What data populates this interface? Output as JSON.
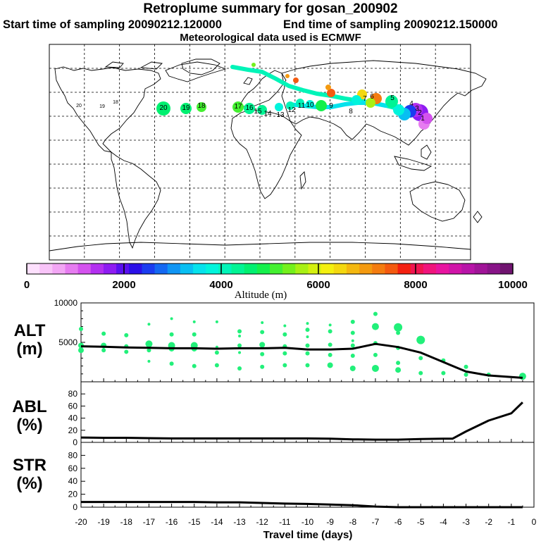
{
  "header": {
    "title": "Retroplume summary for gosan_200902",
    "start_label": "Start time of sampling 20090212.120000",
    "end_label": "End time of sampling 20090212.150000",
    "met_label": "Meteorological data used is ECMWF"
  },
  "colorbar": {
    "label": "Altitude (m)",
    "ticks": [
      "0",
      "2000",
      "4000",
      "6000",
      "8000",
      "10000"
    ],
    "colors": [
      "#fde0fd",
      "#f8c4f8",
      "#f2a6f4",
      "#e67cf0",
      "#d452ee",
      "#b32ff0",
      "#8e1cf2",
      "#5a10f0",
      "#2a10e8",
      "#1a3cf0",
      "#1468f2",
      "#0f95f4",
      "#08bff2",
      "#05e2ec",
      "#00f4dc",
      "#00f4b8",
      "#00f494",
      "#00f070",
      "#14f04c",
      "#44f030",
      "#74f01c",
      "#a8f014",
      "#d4f010",
      "#f4f010",
      "#f4d810",
      "#f4b810",
      "#f49a10",
      "#f47c10",
      "#f45a10",
      "#f42010",
      "#f01450",
      "#f0147c",
      "#e814a0",
      "#d014a8",
      "#b814a8",
      "#a01498",
      "#881488",
      "#701470"
    ]
  },
  "map": {
    "labels": [
      {
        "t": "20",
        "c": "#d4f010"
      },
      {
        "t": "19",
        "c": "#d4f010"
      },
      {
        "t": "18",
        "c": "#d4f010"
      },
      {
        "t": "20",
        "c": "#00f494"
      },
      {
        "t": "19",
        "c": "#00f494"
      },
      {
        "t": "18",
        "c": "#00f494"
      },
      {
        "t": "17",
        "c": "#44f030"
      },
      {
        "t": "16",
        "c": "#00f494"
      },
      {
        "t": "15",
        "c": "#00f494"
      },
      {
        "t": "14",
        "c": "#00f4b8"
      },
      {
        "t": "13",
        "c": "#00f4b8"
      },
      {
        "t": "12",
        "c": "#00f4b8"
      },
      {
        "t": "11",
        "c": "#00f4b8"
      },
      {
        "t": "10",
        "c": "#00f4b8"
      },
      {
        "t": "9",
        "c": "#a8f014"
      },
      {
        "t": "8",
        "c": "#d4f010"
      },
      {
        "t": "7",
        "c": "#44f030"
      },
      {
        "t": "6",
        "c": "#05e2ec"
      },
      {
        "t": "5",
        "c": "#08bff2"
      },
      {
        "t": "4",
        "c": "#1468f2"
      },
      {
        "t": "3",
        "c": "#8e1cf2"
      },
      {
        "t": "2",
        "c": "#b32ff0"
      },
      {
        "t": "1",
        "c": "#e67cf0"
      }
    ]
  },
  "chart_data": [
    {
      "type": "line",
      "panel": "ALT",
      "ylabel": "ALT\n(m)",
      "ylabel_top": "ALT",
      "ylabel_bottom": "(m)",
      "ylim": [
        0,
        10000
      ],
      "yticks": [
        "5000",
        "10000"
      ],
      "x": [
        -20,
        -19,
        -18,
        -17,
        -16,
        -15,
        -14,
        -13,
        -12,
        -11,
        -10,
        -9,
        -8,
        -7,
        -6,
        -5,
        -4,
        -3,
        -2,
        -1,
        -0.5
      ],
      "values": [
        4500,
        4450,
        4350,
        4300,
        4250,
        4250,
        4200,
        4250,
        4250,
        4300,
        4100,
        4100,
        4200,
        4800,
        4400,
        3700,
        2500,
        1300,
        800,
        600,
        500
      ],
      "scatter": [
        {
          "x": -20,
          "y": 6700,
          "s": 3
        },
        {
          "x": -20,
          "y": 4600,
          "s": 4
        },
        {
          "x": -20,
          "y": 4000,
          "s": 4
        },
        {
          "x": -19,
          "y": 6100,
          "s": 3
        },
        {
          "x": -19,
          "y": 4600,
          "s": 4
        },
        {
          "x": -19,
          "y": 4000,
          "s": 3
        },
        {
          "x": -18,
          "y": 5900,
          "s": 3
        },
        {
          "x": -18,
          "y": 4500,
          "s": 3
        },
        {
          "x": -18,
          "y": 3800,
          "s": 3
        },
        {
          "x": -17,
          "y": 7300,
          "s": 2
        },
        {
          "x": -17,
          "y": 4800,
          "s": 5
        },
        {
          "x": -17,
          "y": 4000,
          "s": 3
        },
        {
          "x": -17,
          "y": 2600,
          "s": 2
        },
        {
          "x": -16,
          "y": 8000,
          "s": 2
        },
        {
          "x": -16,
          "y": 6000,
          "s": 3
        },
        {
          "x": -16,
          "y": 4600,
          "s": 5
        },
        {
          "x": -16,
          "y": 4200,
          "s": 4
        },
        {
          "x": -16,
          "y": 2300,
          "s": 3
        },
        {
          "x": -15,
          "y": 7600,
          "s": 2
        },
        {
          "x": -15,
          "y": 6000,
          "s": 3
        },
        {
          "x": -15,
          "y": 4600,
          "s": 5
        },
        {
          "x": -15,
          "y": 4200,
          "s": 4
        },
        {
          "x": -15,
          "y": 2000,
          "s": 3
        },
        {
          "x": -14,
          "y": 7600,
          "s": 2
        },
        {
          "x": -14,
          "y": 4400,
          "s": 2
        },
        {
          "x": -14,
          "y": 3700,
          "s": 3
        },
        {
          "x": -14,
          "y": 2100,
          "s": 3
        },
        {
          "x": -13,
          "y": 6400,
          "s": 3
        },
        {
          "x": -13,
          "y": 5800,
          "s": 2
        },
        {
          "x": -13,
          "y": 4600,
          "s": 3
        },
        {
          "x": -13,
          "y": 3700,
          "s": 2
        },
        {
          "x": -13,
          "y": 1700,
          "s": 3
        },
        {
          "x": -12,
          "y": 7500,
          "s": 2
        },
        {
          "x": -12,
          "y": 6300,
          "s": 3
        },
        {
          "x": -12,
          "y": 4700,
          "s": 4
        },
        {
          "x": -12,
          "y": 3500,
          "s": 3
        },
        {
          "x": -12,
          "y": 1900,
          "s": 3
        },
        {
          "x": -11,
          "y": 7100,
          "s": 2
        },
        {
          "x": -11,
          "y": 6000,
          "s": 3
        },
        {
          "x": -11,
          "y": 4500,
          "s": 3
        },
        {
          "x": -11,
          "y": 3600,
          "s": 3
        },
        {
          "x": -11,
          "y": 2100,
          "s": 3
        },
        {
          "x": -10,
          "y": 7400,
          "s": 2
        },
        {
          "x": -10,
          "y": 6600,
          "s": 3
        },
        {
          "x": -10,
          "y": 5700,
          "s": 2
        },
        {
          "x": -10,
          "y": 4600,
          "s": 3
        },
        {
          "x": -10,
          "y": 3600,
          "s": 3
        },
        {
          "x": -10,
          "y": 2100,
          "s": 3
        },
        {
          "x": -9,
          "y": 7200,
          "s": 2
        },
        {
          "x": -9,
          "y": 6400,
          "s": 3
        },
        {
          "x": -9,
          "y": 4700,
          "s": 3
        },
        {
          "x": -9,
          "y": 3400,
          "s": 3
        },
        {
          "x": -9,
          "y": 2100,
          "s": 4
        },
        {
          "x": -8,
          "y": 7600,
          "s": 3
        },
        {
          "x": -8,
          "y": 6200,
          "s": 3
        },
        {
          "x": -8,
          "y": 5200,
          "s": 2
        },
        {
          "x": -8,
          "y": 4600,
          "s": 3
        },
        {
          "x": -8,
          "y": 3300,
          "s": 3
        },
        {
          "x": -8,
          "y": 1700,
          "s": 4
        },
        {
          "x": -7,
          "y": 8600,
          "s": 3
        },
        {
          "x": -7,
          "y": 7000,
          "s": 5
        },
        {
          "x": -7,
          "y": 4900,
          "s": 3
        },
        {
          "x": -7,
          "y": 3400,
          "s": 3
        },
        {
          "x": -7,
          "y": 1700,
          "s": 5
        },
        {
          "x": -6,
          "y": 6900,
          "s": 6
        },
        {
          "x": -6,
          "y": 6200,
          "s": 3
        },
        {
          "x": -6,
          "y": 4300,
          "s": 3
        },
        {
          "x": -6,
          "y": 2400,
          "s": 3
        },
        {
          "x": -6,
          "y": 1500,
          "s": 4
        },
        {
          "x": -5,
          "y": 5300,
          "s": 6
        },
        {
          "x": -5,
          "y": 3000,
          "s": 3
        },
        {
          "x": -5,
          "y": 1100,
          "s": 3
        },
        {
          "x": -4,
          "y": 2700,
          "s": 3
        },
        {
          "x": -4,
          "y": 1100,
          "s": 3
        },
        {
          "x": -3,
          "y": 1900,
          "s": 3
        },
        {
          "x": -3,
          "y": 900,
          "s": 3
        },
        {
          "x": -2,
          "y": 900,
          "s": 3
        },
        {
          "x": -0.5,
          "y": 700,
          "s": 5
        }
      ]
    },
    {
      "type": "line",
      "panel": "ABL",
      "ylabel_top": "ABL",
      "ylabel_bottom": "(%)",
      "ylim": [
        0,
        100
      ],
      "yticks": [
        "0",
        "20",
        "40",
        "60",
        "80"
      ],
      "x": [
        -20,
        -19,
        -18,
        -17,
        -16,
        -15,
        -14,
        -13,
        -12,
        -11,
        -10,
        -9,
        -8,
        -7,
        -6,
        -5,
        -4,
        -3.6,
        -3,
        -2,
        -1,
        -0.5
      ],
      "values": [
        8,
        7.5,
        7.5,
        7,
        6.5,
        6.5,
        6.5,
        6.5,
        6.5,
        6.5,
        6.5,
        6,
        5,
        4.5,
        4.5,
        5.5,
        6,
        6,
        18,
        36,
        48,
        66
      ]
    },
    {
      "type": "line",
      "panel": "STR",
      "ylabel_top": "STR",
      "ylabel_bottom": "(%)",
      "ylim": [
        0,
        100
      ],
      "yticks": [
        "0",
        "20",
        "40",
        "60",
        "80"
      ],
      "x": [
        -20,
        -19,
        -18,
        -17,
        -16,
        -15,
        -14,
        -13,
        -12,
        -11,
        -10,
        -9,
        -8,
        -7,
        -6,
        -5,
        -4,
        -3,
        -2,
        -1,
        -0.5
      ],
      "values": [
        8,
        8,
        8,
        8,
        8,
        8,
        7.5,
        7.5,
        6.5,
        5.5,
        5,
        4,
        3,
        1,
        0,
        0,
        0,
        0,
        0,
        0,
        0
      ]
    }
  ],
  "xaxis": {
    "label": "Travel time (days)",
    "ticks": [
      "-20",
      "-19",
      "-18",
      "-17",
      "-16",
      "-15",
      "-14",
      "-13",
      "-12",
      "-11",
      "-10",
      "-9",
      "-8",
      "-7",
      "-6",
      "-5",
      "-4",
      "-3",
      "-2",
      "-1",
      "0"
    ],
    "xlim": [
      -20,
      0
    ]
  }
}
